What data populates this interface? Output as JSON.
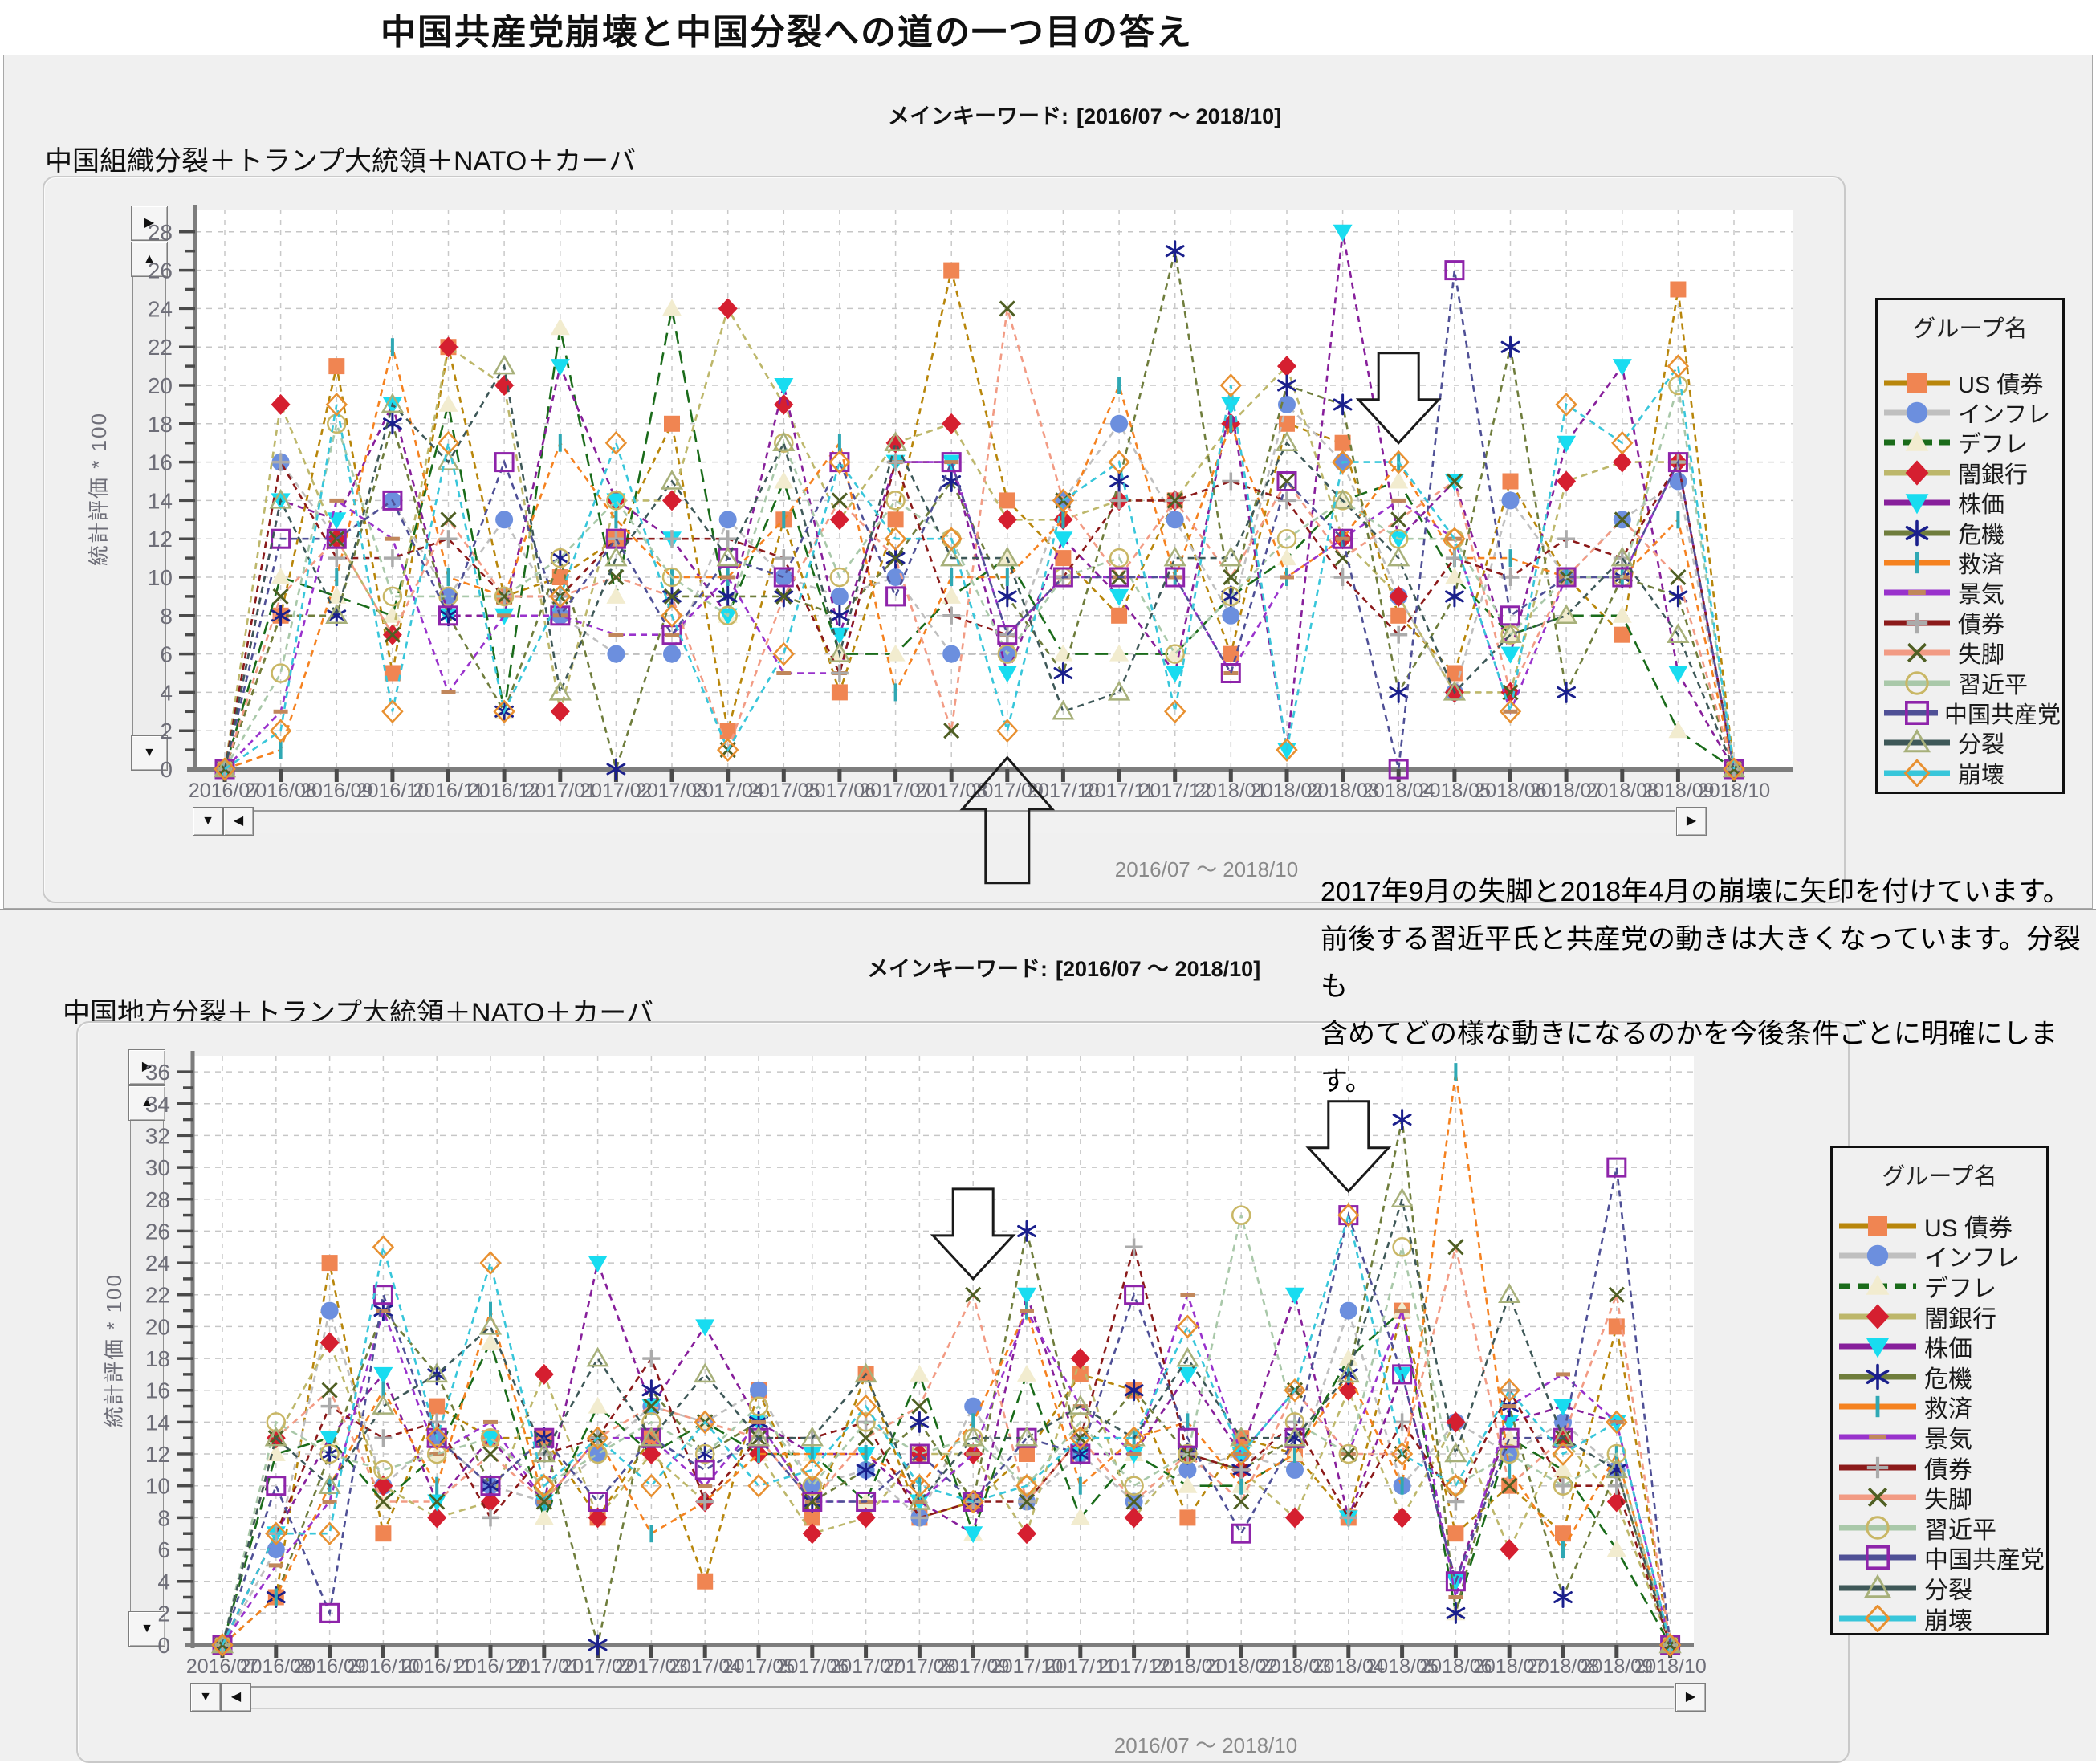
{
  "page_title": "中国共産党崩壊と中国分裂への道の一つ目の答え",
  "annotation": {
    "lines": [
      "2017年9月の失脚と2018年4月の崩壊に矢印を付けています。",
      "前後する習近平氏と共産党の動きは大きくなっています。分裂も",
      "含めてどの様な動きになるのかを今後条件ごとに明確にします。"
    ]
  },
  "panels": [
    {
      "keyword_label": "メインキーワード:",
      "keyword_value": "[2016/07 ～ 2018/10]",
      "subtitle": "中国組織分裂＋トランプ大統領＋NATO＋カーバ"
    },
    {
      "keyword_label": "メインキーワード:",
      "keyword_value": "[2016/07 ～ 2018/10]",
      "subtitle": "中国地方分裂＋トランプ大統領＋NATO＋カーバ"
    }
  ],
  "controls": {
    "up_glyph": "▲",
    "down_glyph": "▼",
    "left_glyph": "◀",
    "right_glyph": "▶",
    "pan_glyph": "▶"
  },
  "series_styles": [
    {
      "key": "us-bond",
      "name": "US 債券",
      "line_color": "#B8860B",
      "dash": "short",
      "marker": "square",
      "marker_color": "#F08552"
    },
    {
      "key": "inflation",
      "name": "インフレ",
      "line_color": "#BFBFBF",
      "dash": "short",
      "marker": "circle",
      "marker_color": "#6C8FDE"
    },
    {
      "key": "deflation",
      "name": "デフレ",
      "line_color": "#1A6B1A",
      "dash": "long",
      "marker": "triangle",
      "marker_color": "#F2ECCF"
    },
    {
      "key": "shadow-bank",
      "name": "闇銀行",
      "line_color": "#BDB76B",
      "dash": "short",
      "marker": "diamond",
      "marker_color": "#D51F30"
    },
    {
      "key": "stock-price",
      "name": "株価",
      "line_color": "#871F9B",
      "dash": "short",
      "marker": "triangle-down",
      "marker_color": "#18DCF0"
    },
    {
      "key": "crisis",
      "name": "危機",
      "line_color": "#6F7D3C",
      "dash": "short",
      "marker": "asterisk",
      "marker_color": "#1A1F8C"
    },
    {
      "key": "bailout",
      "name": "救済",
      "line_color": "#F58220",
      "dash": "short",
      "marker": "vline",
      "marker_color": "#2FA8B4"
    },
    {
      "key": "economy",
      "name": "景気",
      "line_color": "#9932CC",
      "dash": "short",
      "marker": "hline",
      "marker_color": "#C1875B"
    },
    {
      "key": "bond",
      "name": "債券",
      "line_color": "#8B1A1A",
      "dash": "short",
      "marker": "plus",
      "marker_color": "#ABABAB"
    },
    {
      "key": "downfall",
      "name": "失脚",
      "line_color": "#F29B84",
      "dash": "short",
      "marker": "x",
      "marker_color": "#4F5F23"
    },
    {
      "key": "xi-jinping",
      "name": "習近平",
      "line_color": "#A9C8A9",
      "dash": "short",
      "marker": "circle-o",
      "marker_color": "#C9B765"
    },
    {
      "key": "ccp",
      "name": "中国共産党",
      "line_color": "#4F5096",
      "dash": "short",
      "marker": "square-o",
      "marker_color": "#8E24AA"
    },
    {
      "key": "split",
      "name": "分裂",
      "line_color": "#3E5858",
      "dash": "short",
      "marker": "triangle-o",
      "marker_color": "#A7B07A"
    },
    {
      "key": "collapse",
      "name": "崩壊",
      "line_color": "#38C6DA",
      "dash": "short",
      "marker": "diamond-o",
      "marker_color": "#E89030"
    }
  ],
  "chart_data": [
    {
      "type": "line",
      "title": "中国組織分裂＋トランプ大統領＋NATO＋カーバ",
      "ylabel": "統計評価 * 100",
      "xlabel": "",
      "x_range_label": "2016/07 ～ 2018/10",
      "legend_title": "グループ名",
      "legend_position": "right",
      "grid": true,
      "ylim": [
        0,
        28
      ],
      "ytick_step": 2,
      "categories": [
        "2016/07",
        "2016/08",
        "2016/09",
        "2016/10",
        "2016/11",
        "2016/12",
        "2017/01",
        "2017/02",
        "2017/03",
        "2017/04",
        "2017/05",
        "2017/06",
        "2017/07",
        "2017/08",
        "2017/09",
        "2017/10",
        "2017/11",
        "2017/12",
        "2018/01",
        "2018/02",
        "2018/03",
        "2018/04",
        "2018/05",
        "2018/06",
        "2018/07",
        "2018/08",
        "2018/09",
        "2018/10"
      ],
      "series": [
        {
          "name": "US 債券",
          "values": [
            0,
            8,
            21,
            5,
            22,
            9,
            10,
            12,
            18,
            2,
            13,
            4,
            13,
            26,
            14,
            11,
            8,
            14,
            6,
            18,
            17,
            8,
            5,
            15,
            10,
            7,
            25,
            0
          ]
        },
        {
          "name": "インフレ",
          "values": [
            0,
            16,
            12,
            14,
            9,
            13,
            8,
            6,
            6,
            13,
            10,
            9,
            10,
            6,
            6,
            14,
            18,
            13,
            8,
            19,
            16,
            9,
            4,
            14,
            10,
            13,
            15,
            0
          ]
        },
        {
          "name": "デフレ",
          "values": [
            0,
            10,
            9,
            8,
            19,
            3,
            23,
            9,
            24,
            8,
            15,
            6,
            6,
            9,
            11,
            6,
            6,
            6,
            9,
            11,
            14,
            15,
            10,
            7,
            8,
            8,
            2,
            0
          ]
        },
        {
          "name": "闇銀行",
          "values": [
            0,
            19,
            12,
            7,
            22,
            20,
            3,
            14,
            14,
            24,
            19,
            13,
            17,
            18,
            13,
            13,
            14,
            14,
            18,
            21,
            12,
            9,
            4,
            4,
            15,
            16,
            16,
            0
          ]
        },
        {
          "name": "株価",
          "values": [
            0,
            14,
            13,
            19,
            8,
            8,
            21,
            14,
            12,
            8,
            20,
            7,
            16,
            16,
            5,
            12,
            9,
            5,
            19,
            1,
            28,
            12,
            15,
            6,
            17,
            21,
            5,
            0
          ]
        },
        {
          "name": "危機",
          "values": [
            0,
            8,
            8,
            18,
            8,
            3,
            11,
            0,
            9,
            9,
            9,
            8,
            11,
            15,
            9,
            5,
            15,
            27,
            9,
            20,
            19,
            4,
            9,
            22,
            4,
            10,
            9,
            0
          ]
        },
        {
          "name": "救済",
          "values": [
            0,
            1,
            10,
            22,
            10,
            9,
            17,
            13,
            10,
            10,
            13,
            17,
            4,
            10,
            10,
            13,
            20,
            10,
            18,
            10,
            12,
            16,
            11,
            11,
            10,
            10,
            13,
            0
          ]
        },
        {
          "name": "景気",
          "values": [
            0,
            3,
            14,
            12,
            4,
            8,
            8,
            7,
            7,
            10,
            5,
            5,
            16,
            16,
            7,
            10,
            10,
            10,
            5,
            10,
            12,
            14,
            12,
            3,
            10,
            10,
            16,
            0
          ]
        },
        {
          "name": "債券",
          "values": [
            0,
            16,
            11,
            11,
            12,
            9,
            9,
            12,
            12,
            12,
            11,
            5,
            16,
            8,
            7,
            10,
            14,
            14,
            15,
            14,
            10,
            7,
            11,
            10,
            12,
            11,
            16,
            0
          ]
        },
        {
          "name": "失脚",
          "values": [
            0,
            9,
            12,
            7,
            13,
            9,
            9,
            10,
            9,
            1,
            9,
            14,
            11,
            2,
            24,
            14,
            10,
            14,
            10,
            15,
            11,
            13,
            15,
            4,
            10,
            13,
            10,
            0
          ]
        },
        {
          "name": "習近平",
          "values": [
            0,
            5,
            18,
            9,
            9,
            9,
            11,
            14,
            10,
            8,
            17,
            10,
            14,
            12,
            6,
            10,
            11,
            6,
            9,
            12,
            14,
            12,
            12,
            7,
            10,
            10,
            20,
            0
          ]
        },
        {
          "name": "中国共産党",
          "values": [
            0,
            12,
            12,
            14,
            8,
            16,
            8,
            12,
            7,
            11,
            10,
            16,
            9,
            16,
            7,
            10,
            10,
            10,
            5,
            15,
            12,
            0,
            26,
            8,
            10,
            10,
            16,
            0
          ]
        },
        {
          "name": "分裂",
          "values": [
            0,
            14,
            8,
            19,
            16,
            21,
            4,
            11,
            15,
            11,
            17,
            6,
            17,
            11,
            11,
            3,
            4,
            11,
            11,
            17,
            14,
            11,
            4,
            7,
            8,
            11,
            7,
            0
          ]
        },
        {
          "name": "崩壊",
          "values": [
            0,
            2,
            19,
            3,
            17,
            3,
            9,
            17,
            8,
            1,
            6,
            16,
            12,
            12,
            2,
            14,
            16,
            3,
            20,
            1,
            16,
            16,
            12,
            3,
            19,
            17,
            21,
            0
          ]
        }
      ],
      "arrows": [
        {
          "direction": "up",
          "month": "2017/09",
          "month_index": 14,
          "tip_value": 0.6
        },
        {
          "direction": "down",
          "month": "2018/04",
          "month_index": 21,
          "tip_value": 17
        }
      ]
    },
    {
      "type": "line",
      "title": "中国地方分裂＋トランプ大統領＋NATO＋カーバ",
      "ylabel": "統計評価 * 100",
      "xlabel": "",
      "x_range_label": "2016/07 ～ 2018/10",
      "legend_title": "グループ名",
      "legend_position": "right",
      "grid": true,
      "ylim": [
        0,
        36
      ],
      "ytick_step": 2,
      "categories": [
        "2016/07",
        "2016/08",
        "2016/09",
        "2016/10",
        "2016/11",
        "2016/12",
        "2017/01",
        "2017/02",
        "2017/03",
        "2017/04",
        "2017/05",
        "2017/06",
        "2017/07",
        "2017/08",
        "2017/09",
        "2017/10",
        "2017/11",
        "2017/12",
        "2018/01",
        "2018/02",
        "2018/03",
        "2018/04",
        "2018/05",
        "2018/06",
        "2018/07",
        "2018/08",
        "2018/09",
        "2018/10"
      ],
      "series": [
        {
          "name": "US 債券",
          "values": [
            0,
            3,
            24,
            7,
            15,
            13,
            13,
            8,
            13,
            4,
            16,
            8,
            17,
            8,
            9,
            12,
            17,
            16,
            8,
            13,
            12,
            8,
            21,
            7,
            10,
            7,
            20,
            0
          ]
        },
        {
          "name": "インフレ",
          "values": [
            0,
            6,
            21,
            10,
            13,
            10,
            9,
            12,
            15,
            14,
            16,
            10,
            11,
            8,
            15,
            9,
            12,
            9,
            11,
            12,
            11,
            21,
            10,
            14,
            12,
            14,
            11,
            0
          ]
        },
        {
          "name": "デフレ",
          "values": [
            0,
            12,
            13,
            9,
            12,
            19,
            8,
            15,
            12,
            14,
            12,
            12,
            9,
            17,
            7,
            17,
            8,
            12,
            10,
            10,
            12,
            18,
            21,
            2,
            13,
            11,
            6,
            0
          ]
        },
        {
          "name": "闇銀行",
          "values": [
            0,
            13,
            19,
            10,
            8,
            9,
            17,
            8,
            12,
            9,
            12,
            7,
            8,
            12,
            12,
            7,
            18,
            8,
            12,
            11,
            8,
            16,
            8,
            14,
            6,
            13,
            9,
            0
          ]
        },
        {
          "name": "株価",
          "values": [
            0,
            7,
            13,
            17,
            9,
            13,
            9,
            24,
            15,
            20,
            14,
            12,
            12,
            9,
            7,
            22,
            12,
            12,
            17,
            12,
            22,
            8,
            17,
            4,
            14,
            15,
            14,
            0
          ]
        },
        {
          "name": "危機",
          "values": [
            0,
            3,
            12,
            21,
            17,
            10,
            13,
            0,
            16,
            12,
            14,
            9,
            11,
            14,
            9,
            26,
            12,
            16,
            12,
            11,
            13,
            17,
            33,
            2,
            15,
            3,
            11,
            0
          ]
        },
        {
          "name": "救済",
          "values": [
            0,
            3,
            10,
            16,
            10,
            21,
            9,
            13,
            7,
            9,
            12,
            12,
            12,
            10,
            14,
            21,
            10,
            13,
            14,
            10,
            12,
            17,
            10,
            36,
            11,
            6,
            12,
            0
          ]
        },
        {
          "name": "景気",
          "values": [
            0,
            5,
            9,
            21,
            12,
            14,
            9,
            13,
            13,
            10,
            14,
            9,
            9,
            9,
            12,
            21,
            15,
            12,
            22,
            12,
            16,
            12,
            21,
            3,
            15,
            17,
            14,
            0
          ]
        },
        {
          "name": "債券",
          "values": [
            0,
            7,
            15,
            13,
            14,
            8,
            12,
            13,
            18,
            9,
            13,
            13,
            14,
            8,
            9,
            9,
            13,
            25,
            12,
            11,
            14,
            8,
            14,
            9,
            16,
            10,
            10,
            0
          ]
        },
        {
          "name": "失脚",
          "values": [
            0,
            13,
            16,
            9,
            9,
            12,
            9,
            13,
            15,
            14,
            13,
            9,
            13,
            15,
            22,
            9,
            13,
            9,
            12,
            9,
            16,
            12,
            12,
            25,
            10,
            13,
            22,
            0
          ]
        },
        {
          "name": "習近平",
          "values": [
            0,
            14,
            12,
            11,
            12,
            13,
            10,
            12,
            14,
            12,
            15,
            10,
            14,
            12,
            13,
            10,
            14,
            10,
            12,
            27,
            14,
            12,
            25,
            10,
            12,
            10,
            12,
            0
          ]
        },
        {
          "name": "中国共産党",
          "values": [
            0,
            10,
            2,
            22,
            13,
            10,
            13,
            9,
            13,
            11,
            13,
            9,
            9,
            12,
            9,
            13,
            12,
            22,
            13,
            7,
            13,
            27,
            17,
            4,
            13,
            13,
            30,
            0
          ]
        },
        {
          "name": "分裂",
          "values": [
            0,
            13,
            10,
            15,
            17,
            20,
            12,
            18,
            13,
            17,
            13,
            13,
            17,
            9,
            13,
            13,
            15,
            13,
            18,
            13,
            13,
            17,
            28,
            12,
            22,
            13,
            11,
            0
          ]
        },
        {
          "name": "崩壊",
          "values": [
            0,
            7,
            7,
            25,
            13,
            24,
            10,
            13,
            10,
            14,
            10,
            11,
            15,
            10,
            9,
            10,
            13,
            13,
            20,
            12,
            16,
            27,
            12,
            10,
            16,
            12,
            14,
            0
          ]
        }
      ],
      "arrows": [
        {
          "direction": "down",
          "month": "2017/09",
          "month_index": 14,
          "tip_value": 23
        },
        {
          "direction": "down",
          "month": "2018/04",
          "month_index": 21,
          "tip_value": 28.5
        }
      ]
    }
  ]
}
